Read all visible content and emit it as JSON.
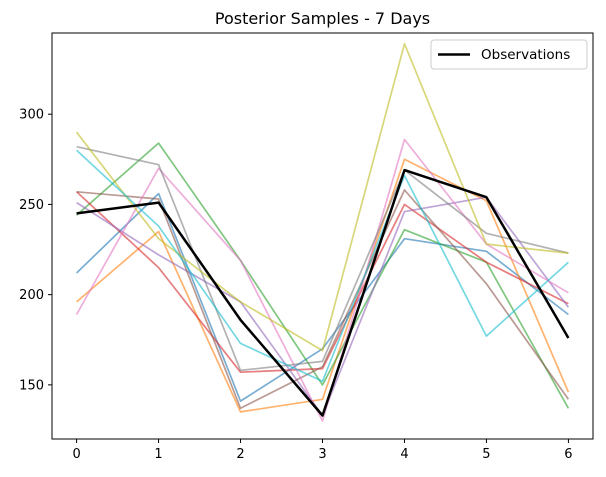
{
  "chart_data": {
    "type": "line",
    "title": "Posterior Samples - 7 Days",
    "xlabel": "",
    "ylabel": "",
    "x": [
      0,
      1,
      2,
      3,
      4,
      5,
      6
    ],
    "xlim": [
      -0.3,
      6.3
    ],
    "ylim": [
      120,
      345
    ],
    "xticks": [
      0,
      1,
      2,
      3,
      4,
      5,
      6
    ],
    "yticks": [
      150,
      200,
      250,
      300
    ],
    "grid": false,
    "legend": "top-right",
    "samples": [
      {
        "color": "#1f77b4",
        "values": [
          212,
          256,
          141,
          170,
          231,
          224,
          189
        ]
      },
      {
        "color": "#ff7f0e",
        "values": [
          196,
          235,
          135,
          142,
          275,
          252,
          146
        ]
      },
      {
        "color": "#2ca02c",
        "values": [
          244,
          284,
          219,
          150,
          236,
          218,
          137
        ]
      },
      {
        "color": "#d62728",
        "values": [
          257,
          215,
          157,
          159,
          250,
          218,
          195
        ]
      },
      {
        "color": "#9467bd",
        "values": [
          251,
          222,
          196,
          133,
          246,
          254,
          193
        ]
      },
      {
        "color": "#8c564b",
        "values": [
          257,
          253,
          137,
          160,
          258,
          206,
          142
        ]
      },
      {
        "color": "#e377c2",
        "values": [
          189,
          270,
          219,
          130,
          286,
          228,
          201
        ]
      },
      {
        "color": "#7f7f7f",
        "values": [
          282,
          272,
          158,
          163,
          269,
          234,
          223
        ]
      },
      {
        "color": "#bcbd22",
        "values": [
          290,
          231,
          196,
          169,
          339,
          228,
          223
        ]
      },
      {
        "color": "#17becf",
        "values": [
          280,
          238,
          173,
          152,
          266,
          177,
          218
        ]
      }
    ],
    "series": [
      {
        "name": "Observations",
        "color": "#000000",
        "values": [
          245,
          251,
          186,
          133,
          269,
          254,
          176
        ]
      }
    ]
  }
}
